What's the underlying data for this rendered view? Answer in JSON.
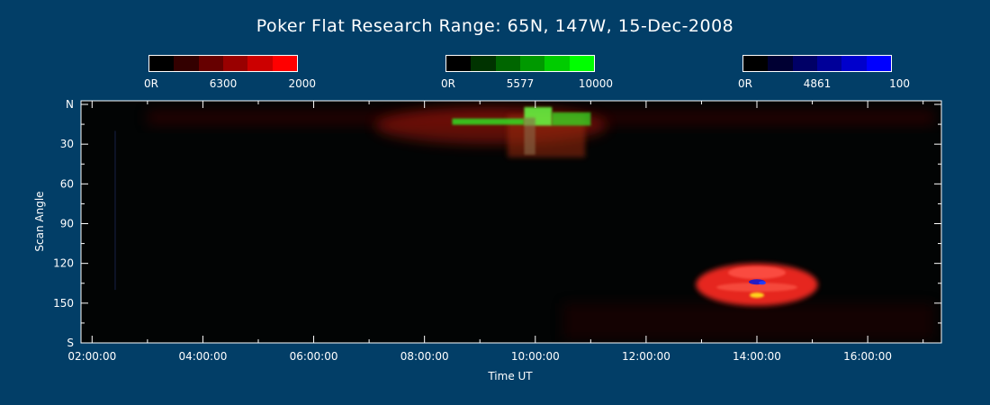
{
  "chart_data": {
    "type": "heatmap",
    "title": "Poker Flat Research Range: 65N, 147W, 15-Dec-2008",
    "xlabel": "Time UT",
    "ylabel": "Scan Angle",
    "x_ticks": [
      "02:00:00",
      "04:00:00",
      "06:00:00",
      "08:00:00",
      "10:00:00",
      "12:00:00",
      "14:00:00",
      "16:00:00"
    ],
    "x_tick_hours": [
      2,
      4,
      6,
      8,
      10,
      12,
      14,
      16
    ],
    "xlim_hours": [
      1.8,
      17.33
    ],
    "y_ticks": [
      "N",
      "30",
      "60",
      "90",
      "120",
      "150",
      "S"
    ],
    "y_tick_values": [
      0,
      30,
      60,
      90,
      120,
      150,
      180
    ],
    "ylim": [
      0,
      180
    ],
    "colorbars": [
      {
        "channel": "6300",
        "labels": [
          "0R",
          "6300",
          "2000"
        ],
        "max": 2000,
        "colors": [
          "#000000",
          "#330000",
          "#660000",
          "#990000",
          "#CC0000",
          "#FF0000"
        ]
      },
      {
        "channel": "5577",
        "labels": [
          "0R",
          "5577",
          "10000"
        ],
        "max": 10000,
        "colors": [
          "#000000",
          "#003300",
          "#006600",
          "#009900",
          "#00CC00",
          "#00FF00"
        ]
      },
      {
        "channel": "4861",
        "labels": [
          "0R",
          "4861",
          "100"
        ],
        "max": 100,
        "colors": [
          "#000000",
          "#000033",
          "#000066",
          "#000099",
          "#0000CC",
          "#0000FF"
        ]
      }
    ],
    "features": [
      {
        "channel": "5577",
        "color": "#33dd22",
        "start_hour": 8.5,
        "end_hour": 11.0,
        "scan_angle": 12
      },
      {
        "channel": "6300",
        "color": "#cc1a10",
        "start_hour": 7.0,
        "end_hour": 11.2,
        "scan_angle_min": 3,
        "scan_angle_max": 30
      },
      {
        "channel": "6300",
        "color": "#ff2a20",
        "start_hour": 12.8,
        "end_hour": 15.0,
        "scan_angle_min": 118,
        "scan_angle_max": 150
      },
      {
        "channel": "4861",
        "color": "#1a1acc",
        "start_hour": 14.0,
        "scan_angle": 134
      }
    ]
  }
}
